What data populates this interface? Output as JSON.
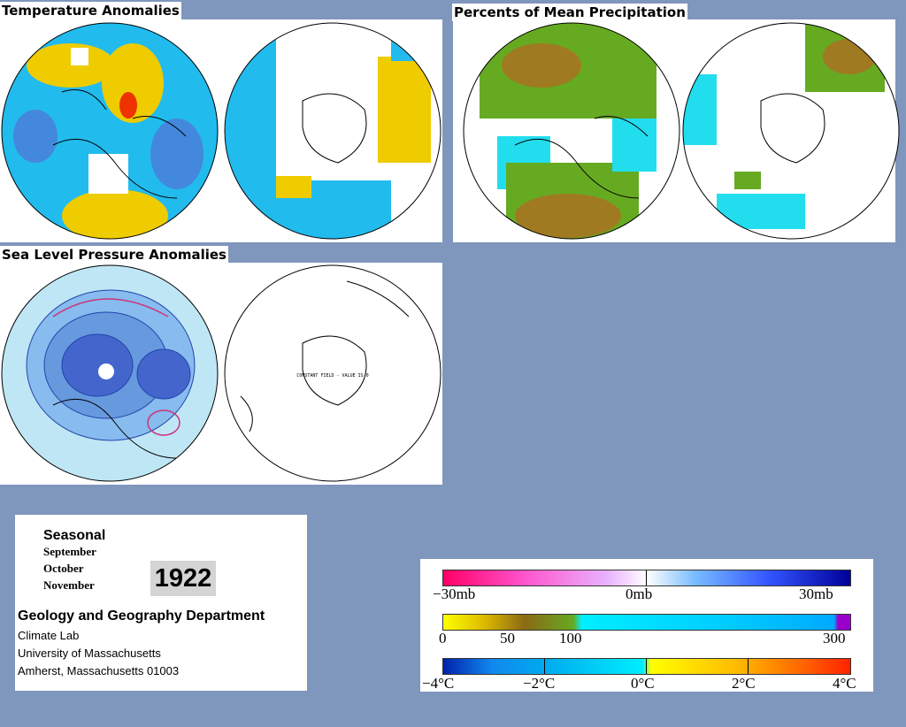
{
  "titles": {
    "temperature": "Temperature Anomalies",
    "precipitation": "Percents of Mean Precipitation",
    "pressure": "Sea Level Pressure Anomalies"
  },
  "pressure_south_note": "CONSTANT FIELD - VALUE IS 0",
  "info": {
    "season": "Seasonal",
    "months": [
      "September",
      "October",
      "November"
    ],
    "year": "1922",
    "department": "Geology and Geography Department",
    "lab": "Climate Lab",
    "university": "University of Massachusetts",
    "address": "Amherst, Massachusetts 01003"
  },
  "legend": {
    "pressure": {
      "labels": [
        "−30mb",
        "0mb",
        "30mb"
      ],
      "colors": [
        "#ff0066",
        "#ffffff",
        "#000099"
      ]
    },
    "precipitation": {
      "labels": [
        "0",
        "50",
        "100",
        "300"
      ],
      "colors": [
        "#ffff00",
        "#8b6914",
        "#66aa22",
        "#00eeff",
        "#00aaff",
        "#9900cc"
      ]
    },
    "temperature": {
      "labels": [
        "−4°C",
        "−2°C",
        "0°C",
        "2°C",
        "4°C"
      ],
      "colors": [
        "#0022aa",
        "#00aaee",
        "#00ffee",
        "#ffff00",
        "#ff9900",
        "#ff2200"
      ]
    }
  }
}
